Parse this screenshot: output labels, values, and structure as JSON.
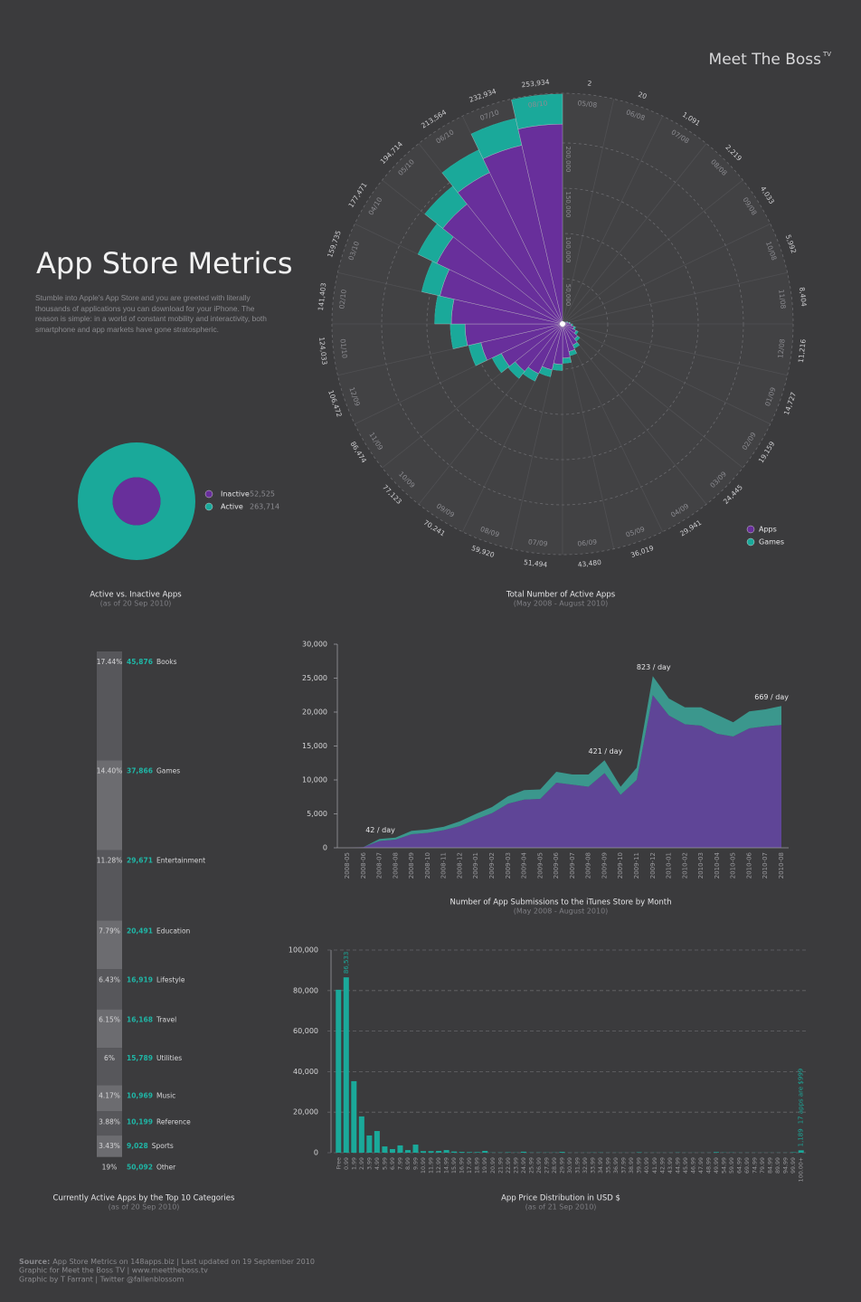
{
  "header": {
    "logo": "Meet The Boss",
    "logo_sup": "TV",
    "title": "App Store Metrics",
    "description": "Stumble into Apple's App Store and you are greeted with literally thousands of applications you can download for your iPhone. The reason is simple: in a world of constant mobility and interactivity, both smartphone and app markets have gone stratospheric."
  },
  "chart_data": [
    {
      "type": "polar",
      "title": "Total Number of Active Apps",
      "subtitle": "(May 2008 - August 2010)",
      "categories": [
        "05/08",
        "06/08",
        "07/08",
        "08/08",
        "09/08",
        "10/08",
        "11/08",
        "12/08",
        "01/09",
        "02/09",
        "03/09",
        "04/09",
        "05/09",
        "06/09",
        "07/09",
        "08/09",
        "09/09",
        "10/09",
        "11/09",
        "12/09",
        "01/10",
        "02/10",
        "03/10",
        "04/10",
        "05/10",
        "06/10",
        "07/10",
        "08/10"
      ],
      "series": [
        {
          "name": "Apps",
          "color": "#682f9b",
          "values": [
            2,
            18,
            950,
            1950,
            3600,
            5300,
            7400,
            9800,
            12800,
            16600,
            21200,
            26000,
            31300,
            37800,
            44800,
            52100,
            61100,
            67100,
            75200,
            92600,
            107900,
            123000,
            139000,
            154400,
            169400,
            185800,
            202600,
            220900
          ]
        },
        {
          "name": "Games",
          "color": "#1aa99a",
          "values": [
            0,
            2,
            141,
            269,
            433,
            692,
            1004,
            1416,
            1927,
            2559,
            3245,
            3941,
            4719,
            5680,
            6694,
            7820,
            9141,
            10023,
            11274,
            13872,
            16133,
            18403,
            20735,
            23071,
            25314,
            27764,
            30334,
            33034
          ]
        }
      ],
      "totals": [
        2,
        20,
        1091,
        2219,
        4033,
        5992,
        8404,
        11216,
        14727,
        19159,
        24445,
        29941,
        36019,
        43480,
        51494,
        59920,
        70241,
        77123,
        86474,
        106472,
        124033,
        141403,
        159735,
        177471,
        194714,
        213564,
        232934,
        253934
      ],
      "total_labels": [
        "2",
        "20",
        "1,091",
        "2,219",
        "4,033",
        "5,992",
        "8,404",
        "11,216",
        "14,727",
        "19,159",
        "24,445",
        "29,941",
        "36,019",
        "43,480",
        "51,494",
        "59,920",
        "70,241",
        "77,123",
        "86,474",
        "106,472",
        "124,033",
        "141,403",
        "159,735",
        "177,471",
        "194,714",
        "213,564",
        "232,934",
        "253,934"
      ],
      "rlim": [
        0,
        255000
      ],
      "rticks": [
        {
          "value": 50000,
          "label": "50,000"
        },
        {
          "value": 100000,
          "label": "100,000"
        },
        {
          "value": 150000,
          "label": "150,000"
        },
        {
          "value": 200000,
          "label": "200,000"
        }
      ],
      "grid": true,
      "legend": "bottom-right"
    },
    {
      "type": "donut",
      "title": "Active vs. Inactive Apps",
      "subtitle": "(as of 20 Sep 2010)",
      "categories": [
        "Inactive",
        "Active"
      ],
      "values": [
        52525,
        263714
      ],
      "value_labels": [
        "52,525",
        "263,714"
      ],
      "colors": [
        "#682f9b",
        "#1aa99a"
      ]
    },
    {
      "type": "category-column",
      "title": "Currently Active Apps by the Top 10 Categories",
      "subtitle": "(as of 20 Sep 2010)",
      "categories": [
        "Books",
        "Games",
        "Entertainment",
        "Education",
        "Lifestyle",
        "Travel",
        "Utilities",
        "Music",
        "Reference",
        "Sports",
        "Other"
      ],
      "values": [
        17.44,
        14.4,
        11.28,
        7.79,
        6.43,
        6.15,
        6,
        4.17,
        3.88,
        3.43,
        19
      ],
      "value_labels": [
        "17.44%",
        "14.40%",
        "11.28%",
        "7.79%",
        "6.43%",
        "6.15%",
        "6%",
        "4.17%",
        "3.88%",
        "3.43%",
        "19%"
      ],
      "counts": [
        45876,
        37866,
        29671,
        20491,
        16919,
        16168,
        15789,
        10969,
        10199,
        9028,
        50092
      ],
      "count_labels": [
        "45,876",
        "37,866",
        "29,671",
        "20,491",
        "16,919",
        "16,168",
        "15,789",
        "10,969",
        "10,199",
        "9,028",
        "50,092"
      ],
      "colors": [
        "#57575b",
        "#6c6c70",
        "#57575b",
        "#6c6c70",
        "#57575b",
        "#6c6c70",
        "#57575b",
        "#6c6c70",
        "#57575b",
        "#6c6c70",
        "transparent"
      ],
      "count_color": "#1fb5a5"
    },
    {
      "type": "stacked-area",
      "title": "Number of App Submissions to the iTunes Store by Month",
      "subtitle": "(May 2008 - August 2010)",
      "categories": [
        "2008-05",
        "2008-06",
        "2008-07",
        "2008-08",
        "2008-09",
        "2008-10",
        "2008-11",
        "2008-12",
        "2009-01",
        "2009-02",
        "2009-03",
        "2009-04",
        "2009-05",
        "2009-06",
        "2009-07",
        "2009-08",
        "2009-09",
        "2009-10",
        "2009-11",
        "2009-12",
        "2010-01",
        "2010-02",
        "2010-03",
        "2010-04",
        "2010-05",
        "2010-06",
        "2010-07",
        "2010-08"
      ],
      "series": [
        {
          "color": "#5f4597",
          "values": [
            0,
            100,
            1000,
            1200,
            2000,
            2200,
            2600,
            3200,
            4200,
            5100,
            6500,
            7100,
            7200,
            9600,
            9300,
            9000,
            11000,
            7800,
            10000,
            22500,
            19500,
            18200,
            18000,
            16800,
            16400,
            17600,
            17900,
            18100
          ]
        },
        {
          "color": "#3b978d",
          "values": [
            0,
            0,
            300,
            300,
            500,
            500,
            500,
            700,
            800,
            900,
            1100,
            1400,
            1400,
            1600,
            1500,
            1800,
            1900,
            1200,
            1800,
            2800,
            2500,
            2500,
            2700,
            2800,
            2100,
            2500,
            2500,
            2800
          ]
        }
      ],
      "point_labels": [
        null,
        null,
        "42 / day",
        null,
        null,
        null,
        null,
        null,
        null,
        null,
        null,
        null,
        null,
        null,
        null,
        null,
        "421 / day",
        null,
        null,
        "823 / day",
        null,
        null,
        null,
        null,
        null,
        null,
        null,
        "669 / day"
      ],
      "ylim": [
        0,
        30000
      ],
      "yticks": [
        0,
        {
          "value": 5000,
          "label": "5,000"
        },
        {
          "value": 10000,
          "label": "10,000"
        },
        {
          "value": 15000,
          "label": "15,000"
        },
        {
          "value": 20000,
          "label": "20,000"
        },
        {
          "value": 25000,
          "label": "25,000"
        },
        {
          "value": 30000,
          "label": "30,000"
        }
      ],
      "grid": false
    },
    {
      "type": "bar",
      "title": "App Price Distribution in USD $",
      "subtitle": "(as of 21 Sep 2010)",
      "categories": [
        "Free",
        "0.99",
        "1.99",
        "2.99",
        "3.99",
        "4.99",
        "5.99",
        "6.99",
        "7.99",
        "8.99",
        "9.99",
        "10.99",
        "11.99",
        "12.99",
        "14.99",
        "15.99",
        "16.99",
        "17.99",
        "18.99",
        "19.99",
        "20.99",
        "21.99",
        "22.99",
        "23.99",
        "24.99",
        "25.99",
        "26.99",
        "27.99",
        "28.99",
        "29.99",
        "30.99",
        "31.99",
        "32.99",
        "33.99",
        "34.99",
        "35.99",
        "36.99",
        "37.99",
        "38.99",
        "39.99",
        "40.99",
        "41.99",
        "42.99",
        "43.99",
        "44.99",
        "45.99",
        "46.99",
        "47.99",
        "48.99",
        "49.99",
        "54.99",
        "59.99",
        "64.99",
        "69.99",
        "74.99",
        "79.99",
        "84.99",
        "89.99",
        "94.99",
        "99.99",
        "100.00+"
      ],
      "values": [
        80400,
        86533,
        35300,
        17900,
        8500,
        10700,
        3100,
        1800,
        3600,
        1300,
        4000,
        800,
        800,
        900,
        1300,
        600,
        400,
        300,
        300,
        900,
        100,
        100,
        200,
        100,
        500,
        100,
        100,
        100,
        100,
        400,
        50,
        50,
        50,
        100,
        100,
        50,
        50,
        50,
        50,
        200,
        50,
        50,
        50,
        50,
        100,
        50,
        50,
        50,
        50,
        300,
        100,
        100,
        50,
        50,
        50,
        50,
        50,
        50,
        50,
        200,
        1189
      ],
      "value_labels": [
        null,
        "86,533",
        null,
        null,
        null,
        null,
        null,
        null,
        null,
        null,
        null,
        null,
        null,
        null,
        null,
        null,
        null,
        null,
        null,
        null,
        null,
        null,
        null,
        null,
        null,
        null,
        null,
        null,
        null,
        null,
        null,
        null,
        null,
        null,
        null,
        null,
        null,
        null,
        null,
        null,
        null,
        null,
        null,
        null,
        null,
        null,
        null,
        null,
        null,
        null,
        null,
        null,
        null,
        null,
        null,
        null,
        null,
        null,
        null,
        null,
        "1,189"
      ],
      "annotation": "17 apps are $999",
      "color": "#1aa99a",
      "ylim": [
        0,
        100000
      ],
      "yticks": [
        0,
        {
          "value": 20000,
          "label": "20,000"
        },
        {
          "value": 40000,
          "label": "40,000"
        },
        {
          "value": 60000,
          "label": "60,000"
        },
        {
          "value": 80000,
          "label": "80,000"
        },
        {
          "value": 100000,
          "label": "100,000"
        }
      ],
      "grid": true
    }
  ],
  "footer": {
    "source_label": "Source:",
    "source": "App Store Metrics on 148apps.biz | Last updated on 19 September 2010",
    "credit": "Graphic for Meet the Boss TV | www.meettheboss.tv",
    "author": "Graphic by T Farrant | Twitter @fallenblossom"
  }
}
